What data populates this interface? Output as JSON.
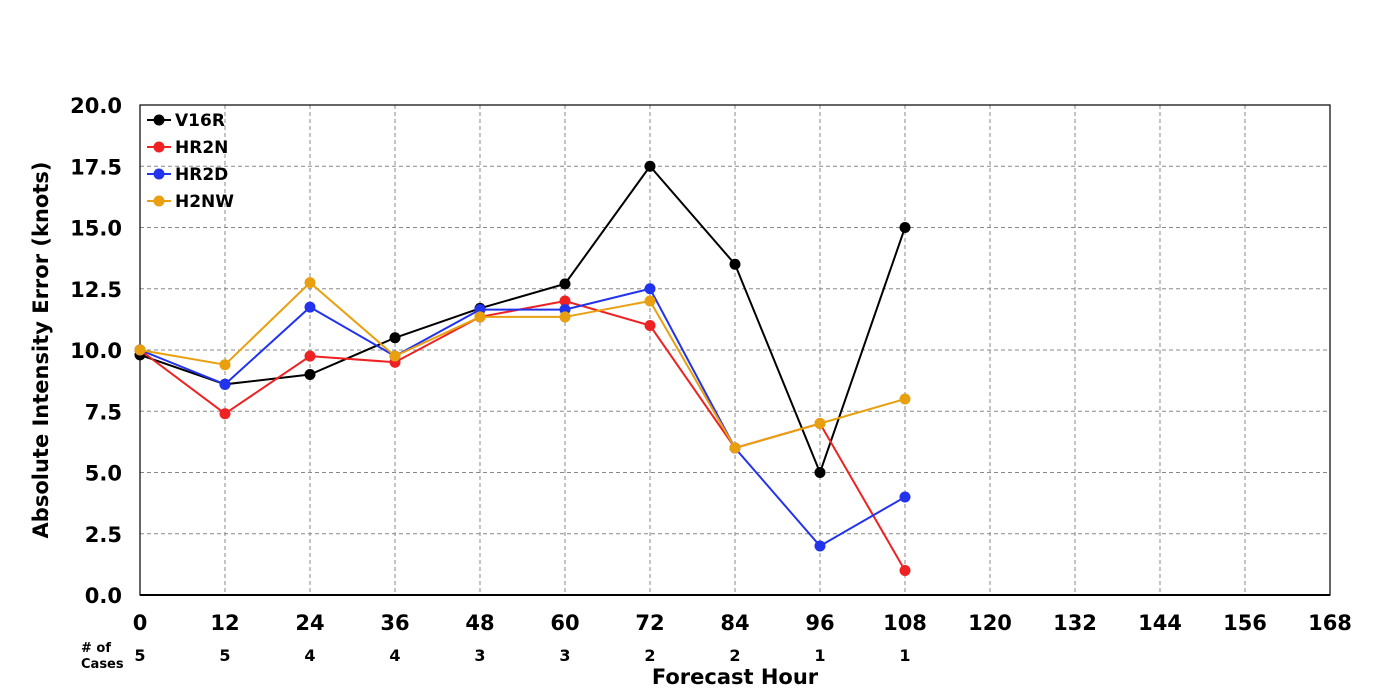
{
  "chart_data": {
    "type": "line",
    "title": "",
    "xlabel": "Forecast Hour",
    "ylabel": "Absolute Intensity Error (knots)",
    "xlim": [
      0,
      168
    ],
    "ylim": [
      0,
      20
    ],
    "x_ticks": [
      "0",
      "12",
      "24",
      "36",
      "48",
      "60",
      "72",
      "84",
      "96",
      "108",
      "120",
      "132",
      "144",
      "156",
      "168"
    ],
    "y_ticks": [
      "0.0",
      "2.5",
      "5.0",
      "7.5",
      "10.0",
      "12.5",
      "15.0",
      "17.5",
      "20.0"
    ],
    "grid": true,
    "legend_position": "top-left",
    "cases_label_line1": "# of",
    "cases_label_line2": "Cases",
    "cases": [
      {
        "x": 0,
        "n": "5"
      },
      {
        "x": 12,
        "n": "5"
      },
      {
        "x": 24,
        "n": "4"
      },
      {
        "x": 36,
        "n": "4"
      },
      {
        "x": 48,
        "n": "3"
      },
      {
        "x": 60,
        "n": "3"
      },
      {
        "x": 72,
        "n": "2"
      },
      {
        "x": 84,
        "n": "2"
      },
      {
        "x": 96,
        "n": "1"
      },
      {
        "x": 108,
        "n": "1"
      }
    ],
    "series": [
      {
        "name": "V16R",
        "color": "#000000",
        "x": [
          0,
          12,
          24,
          36,
          48,
          60,
          72,
          84,
          96,
          108
        ],
        "values": [
          9.8,
          8.6,
          9.0,
          10.5,
          11.7,
          12.7,
          17.5,
          13.5,
          5.0,
          15.0
        ]
      },
      {
        "name": "HR2N",
        "color": "#ee2222",
        "x": [
          0,
          12,
          24,
          36,
          48,
          60,
          72,
          84,
          96,
          108
        ],
        "values": [
          10.0,
          7.4,
          9.75,
          9.5,
          11.35,
          12.0,
          11.0,
          6.0,
          7.0,
          1.0
        ]
      },
      {
        "name": "HR2D",
        "color": "#2233ee",
        "x": [
          0,
          12,
          24,
          36,
          48,
          60,
          72,
          84,
          96,
          108
        ],
        "values": [
          10.0,
          8.6,
          11.75,
          9.75,
          11.65,
          11.65,
          12.5,
          6.0,
          2.0,
          4.0
        ]
      },
      {
        "name": "H2NW",
        "color": "#e8a010",
        "x": [
          0,
          12,
          24,
          36,
          48,
          60,
          72,
          84,
          96,
          108
        ],
        "values": [
          10.0,
          9.4,
          12.75,
          9.75,
          11.35,
          11.35,
          12.0,
          6.0,
          7.0,
          8.0
        ]
      }
    ]
  }
}
